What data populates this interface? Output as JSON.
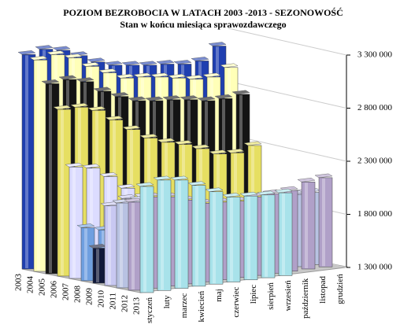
{
  "chart_data": {
    "type": "bar3d",
    "title": "POZIOM BEZROBOCIA W LATACH 2003 -2013 - SEZONOWOŚĆ",
    "subtitle": "Stan w końcu miesiąca sprawozdawczego",
    "categories": [
      "styczeń",
      "luty",
      "marzec",
      "kwiecień",
      "maj",
      "czerwiec",
      "lipiec",
      "sierpień",
      "wrzesień",
      "październik",
      "listopad",
      "grudzień"
    ],
    "series": [
      {
        "name": "2003",
        "color": "#1f3fb0",
        "values": [
          3320000,
          3350000,
          3320000,
          3250000,
          3170000,
          3120000,
          3100000,
          3080000,
          3070000,
          3050000,
          3060000,
          3180000
        ]
      },
      {
        "name": "2004",
        "color": "#ffffb8",
        "values": [
          3290000,
          3320000,
          3270000,
          3170000,
          3090000,
          3020000,
          3010000,
          2990000,
          2960000,
          2930000,
          2930000,
          3000000
        ]
      },
      {
        "name": "2005",
        "color": "#141414",
        "values": [
          3090000,
          3110000,
          3070000,
          2960000,
          2890000,
          2830000,
          2810000,
          2800000,
          2780000,
          2750000,
          2750000,
          2770000
        ]
      },
      {
        "name": "2006",
        "color": "#e6df62",
        "values": [
          2870000,
          2870000,
          2820000,
          2710000,
          2600000,
          2500000,
          2440000,
          2400000,
          2340000,
          2270000,
          2260000,
          2310000
        ]
      },
      {
        "name": "2007",
        "color": "#dcdcff",
        "values": [
          2350000,
          2320000,
          2220000,
          2090000,
          1990000,
          1910000,
          1850000,
          1810000,
          1760000,
          1700000,
          1690000,
          1750000
        ]
      },
      {
        "name": "2008",
        "color": "#6f9fe0",
        "values": [
          1800000,
          1760000,
          1680000,
          1580000,
          1500000,
          1440000,
          1410000,
          1400000,
          1390000,
          1370000,
          1390000,
          1470000
        ]
      },
      {
        "name": "2009",
        "color": "#10183a",
        "values": [
          1630000,
          1730000,
          1760000,
          1750000,
          1730000,
          1710000,
          1720000,
          1740000,
          1760000,
          1770000,
          1830000,
          1890000
        ]
      },
      {
        "name": "2010",
        "color": "#c8c8f2",
        "values": [
          2050000,
          2100000,
          2060000,
          1960000,
          1900000,
          1870000,
          1870000,
          1860000,
          1860000,
          1860000,
          1910000,
          1950000
        ]
      },
      {
        "name": "2011",
        "color": "#b8c2e2",
        "values": [
          2100000,
          2110000,
          2080000,
          1980000,
          1930000,
          1910000,
          1900000,
          1910000,
          1910000,
          1920000,
          1980000,
          1980000
        ]
      },
      {
        "name": "2012",
        "color": "#b0a0c8",
        "values": [
          2130000,
          2160000,
          2140000,
          2090000,
          2040000,
          2030000,
          2020000,
          2040000,
          2050000,
          2060000,
          2120000,
          2140000
        ]
      },
      {
        "name": "2013",
        "color": "#a8e2ea",
        "values": [
          2300000,
          2340000,
          2320000,
          2250000,
          2170000,
          2100000,
          2090000,
          2080000,
          2080000,
          null,
          null,
          null
        ]
      }
    ],
    "ylim": [
      1300000,
      3300000
    ],
    "yticks": [
      {
        "value": 1300000,
        "label": "1 300 000"
      },
      {
        "value": 1800000,
        "label": "1 800 000"
      },
      {
        "value": 2300000,
        "label": "2 300 000"
      },
      {
        "value": 2800000,
        "label": "2 800 000"
      },
      {
        "value": 3300000,
        "label": "3 300 000"
      }
    ],
    "grid": true
  }
}
